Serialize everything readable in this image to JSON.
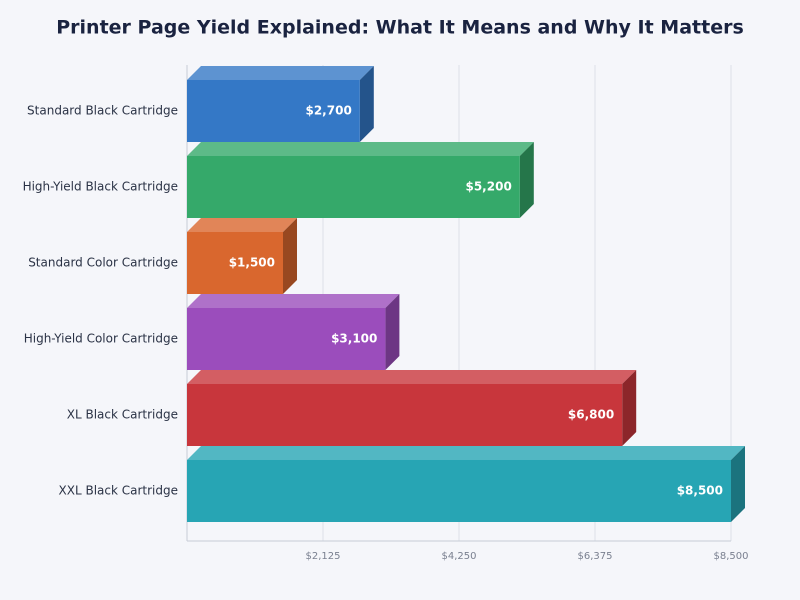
{
  "chart_data": {
    "type": "bar",
    "orientation": "horizontal",
    "title": "Printer Page Yield Explained: What It Means and Why It Matters",
    "categories": [
      "Standard Black Cartridge",
      "High-Yield Black Cartridge",
      "Standard Color Cartridge",
      "High-Yield Color Cartridge",
      "XL Black Cartridge",
      "XXL Black Cartridge"
    ],
    "values": [
      2700,
      5200,
      1500,
      3100,
      6800,
      8500
    ],
    "value_labels": [
      "$2,700",
      "$5,200",
      "$1,500",
      "$3,100",
      "$6,800",
      "$8,500"
    ],
    "colors": [
      "#3478c6",
      "#35a96a",
      "#d9672e",
      "#9b4dbc",
      "#c8363c",
      "#27a5b4"
    ],
    "xlim": [
      0,
      8500
    ],
    "xticks": [
      {
        "value": 2125,
        "label": "$2,125"
      },
      {
        "value": 4250,
        "label": "$4,250"
      },
      {
        "value": 6375,
        "label": "$6,375"
      },
      {
        "value": 8500,
        "label": "$8,500"
      }
    ],
    "grid": true
  }
}
